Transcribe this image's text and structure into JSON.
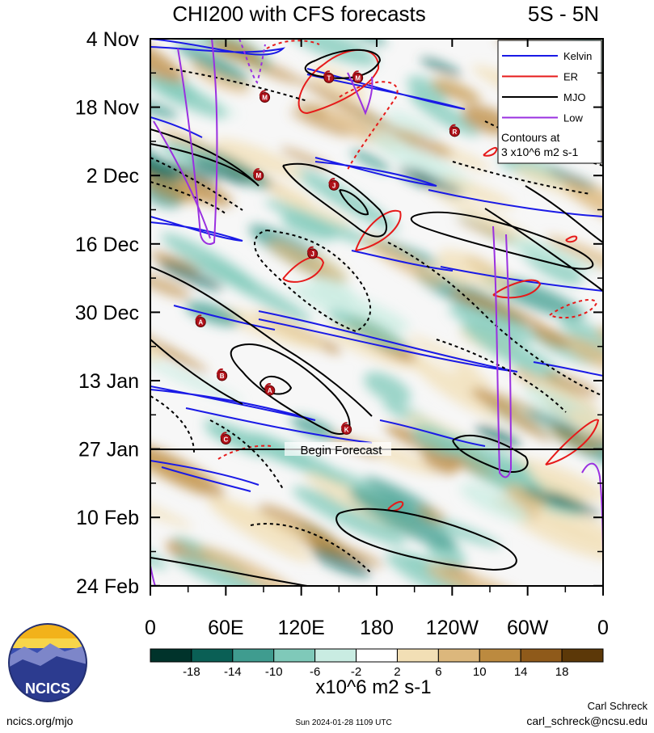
{
  "header": {
    "title": "CHI200 with CFS forecasts",
    "region": "5S - 5N"
  },
  "legend": {
    "items": [
      {
        "label": "Kelvin",
        "color": "#1a1ae6"
      },
      {
        "label": "ER",
        "color": "#e61a1a"
      },
      {
        "label": "MJO",
        "color": "#000000"
      },
      {
        "label": "Low",
        "color": "#9a30e0"
      }
    ],
    "note_line1": "Contours at",
    "note_line2": "3 x10^6 m2 s-1"
  },
  "annotation": {
    "forecast_label": "Begin Forecast"
  },
  "colorbar": {
    "ticks": [
      "-18",
      "-14",
      "-10",
      "-6",
      "-2",
      "2",
      "6",
      "10",
      "14",
      "18"
    ],
    "colors": [
      "#00332b",
      "#0a5f55",
      "#3f9c8f",
      "#7fc9b9",
      "#c9ece2",
      "#ffffff",
      "#f2dfb5",
      "#dcb77c",
      "#bc8a3f",
      "#8f5a1a",
      "#5c3808"
    ],
    "units": "x10^6 m2 s-1"
  },
  "footer": {
    "org": "NCICS",
    "url": "ncics.org/mjo",
    "timestamp": "Sun 2024-01-28 1109 UTC",
    "author": "Carl Schreck",
    "email": "carl_schreck@ncsu.edu"
  },
  "chart_data": {
    "type": "heatmap",
    "title": "CHI200 with CFS forecasts",
    "subtitle": "5S - 5N",
    "x_ticks": [
      "0",
      "60E",
      "120E",
      "180",
      "120W",
      "60W",
      "0"
    ],
    "x_tick_values": [
      0,
      60,
      120,
      180,
      240,
      300,
      360
    ],
    "xlim": [
      0,
      360
    ],
    "y_ticks": [
      "4 Nov",
      "18 Nov",
      "2 Dec",
      "16 Dec",
      "30 Dec",
      "13 Jan",
      "27 Jan",
      "10 Feb",
      "24 Feb"
    ],
    "y_tick_dates": [
      "2023-11-04",
      "2023-11-18",
      "2023-12-02",
      "2023-12-16",
      "2023-12-30",
      "2024-01-13",
      "2024-01-27",
      "2024-02-10",
      "2024-02-24"
    ],
    "forecast_start": "2024-01-27",
    "contour_interval": 3,
    "legend_position": "top-right",
    "storm_markers": [
      {
        "label": "M",
        "lon": 91,
        "date": "2023-11-16"
      },
      {
        "label": "M",
        "lon": 86,
        "date": "2023-12-02"
      },
      {
        "label": "J",
        "lon": 146,
        "date": "2023-12-04"
      },
      {
        "label": "J",
        "lon": 129,
        "date": "2023-12-18"
      },
      {
        "label": "A",
        "lon": 40,
        "date": "2024-01-01"
      },
      {
        "label": "B",
        "lon": 57,
        "date": "2024-01-12"
      },
      {
        "label": "A",
        "lon": 95,
        "date": "2024-01-15"
      },
      {
        "label": "K",
        "lon": 156,
        "date": "2024-01-23"
      },
      {
        "label": "C",
        "lon": 60,
        "date": "2024-01-25"
      },
      {
        "label": "T",
        "lon": 142,
        "date": "2023-11-12"
      },
      {
        "label": "M",
        "lon": 165,
        "date": "2023-11-12"
      },
      {
        "label": "R",
        "lon": 242,
        "date": "2023-11-23"
      }
    ]
  }
}
